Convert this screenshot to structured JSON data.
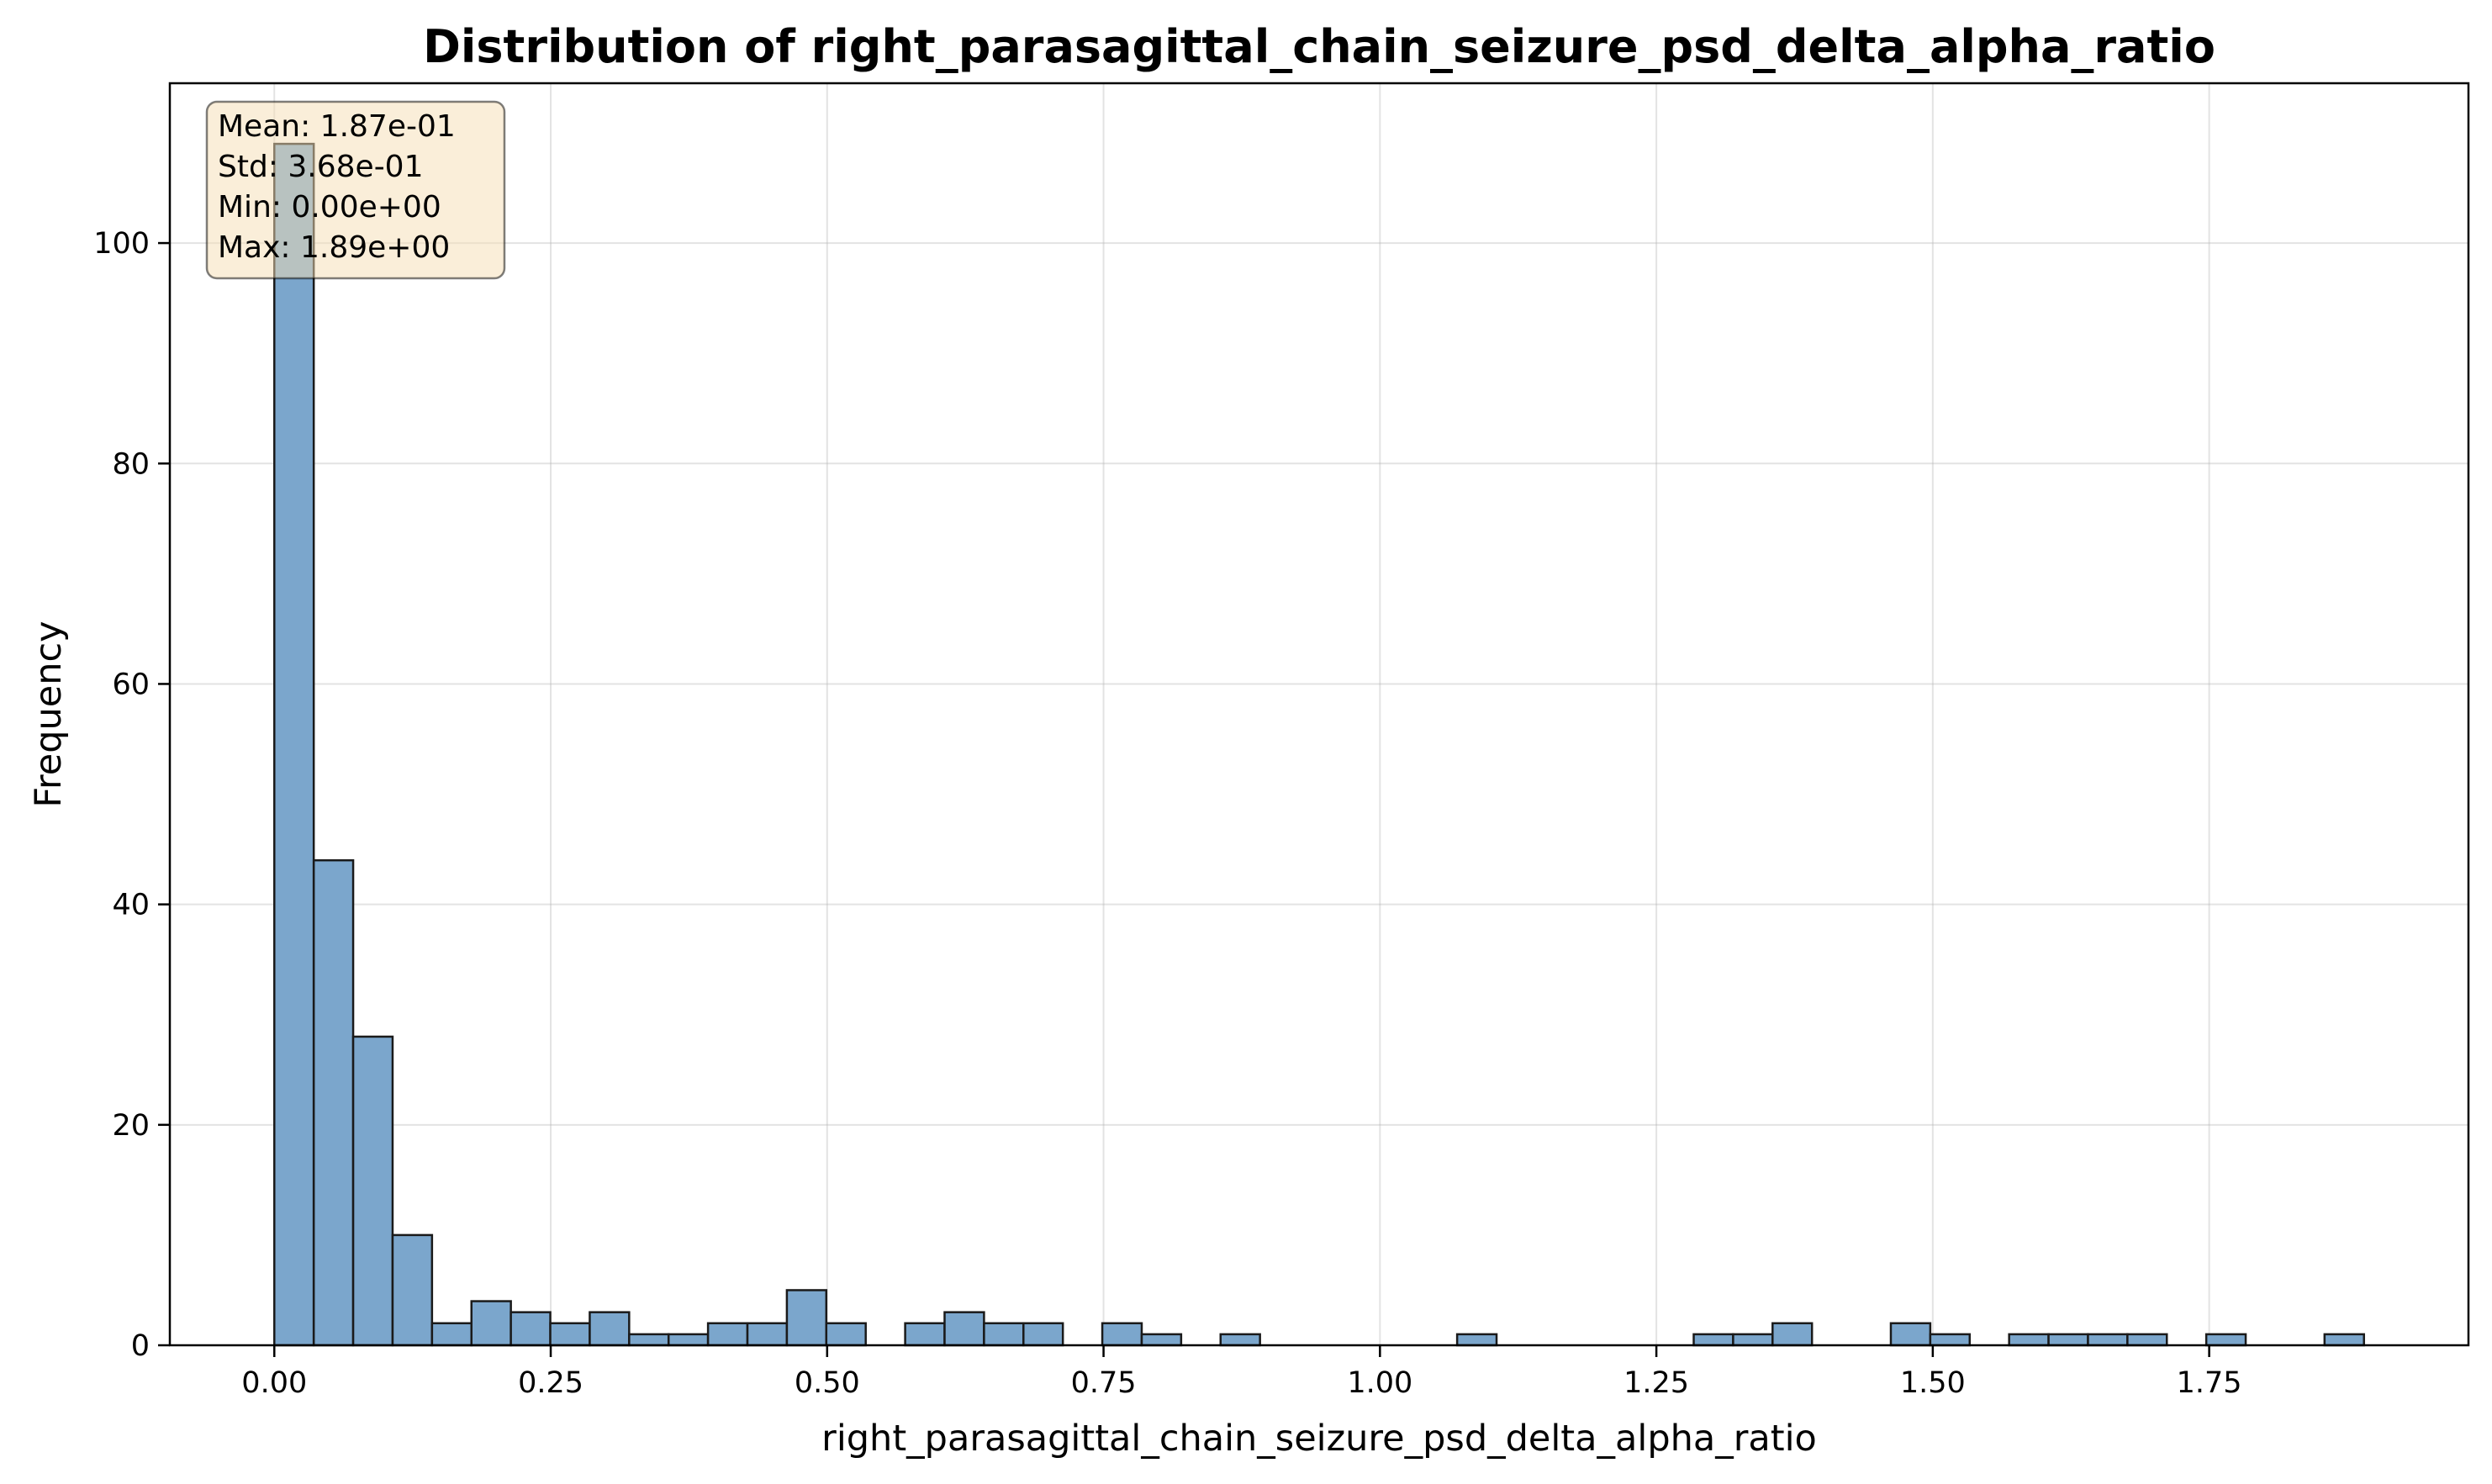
{
  "chart_data": {
    "type": "bar",
    "title": "Distribution of right_parasagittal_chain_seizure_psd_delta_alpha_ratio",
    "xlabel": "right_parasagittal_chain_seizure_psd_delta_alpha_ratio",
    "ylabel": "Frequency",
    "xlim": [
      -0.0945,
      1.9845
    ],
    "ylim": [
      0,
      114.5
    ],
    "grid": true,
    "x_ticks": [
      0.0,
      0.25,
      0.5,
      0.75,
      1.0,
      1.25,
      1.5,
      1.75
    ],
    "x_tick_labels": [
      "0.00",
      "0.25",
      "0.50",
      "0.75",
      "1.00",
      "1.25",
      "1.50",
      "1.75"
    ],
    "y_ticks": [
      0,
      20,
      40,
      60,
      80,
      100
    ],
    "y_tick_labels": [
      "0",
      "20",
      "40",
      "60",
      "80",
      "100"
    ],
    "bin_start": 0.0,
    "bin_end": 1.89,
    "bin_count": 53,
    "values": [
      109,
      44,
      28,
      10,
      2,
      4,
      3,
      2,
      3,
      1,
      1,
      2,
      2,
      5,
      2,
      0,
      2,
      3,
      2,
      2,
      0,
      2,
      1,
      0,
      1,
      0,
      0,
      0,
      0,
      0,
      1,
      0,
      0,
      0,
      0,
      0,
      1,
      1,
      2,
      0,
      0,
      2,
      1,
      0,
      1,
      1,
      1,
      1,
      0,
      1,
      0,
      0,
      1
    ],
    "bar_color": "#7ba6cc",
    "edge_color": "#1a1a1a",
    "stats": [
      "Mean: 1.87e-01",
      "Std: 3.68e-01",
      "Min: 0.00e+00",
      "Max: 1.89e+00"
    ],
    "stats_placement": "top-left"
  }
}
